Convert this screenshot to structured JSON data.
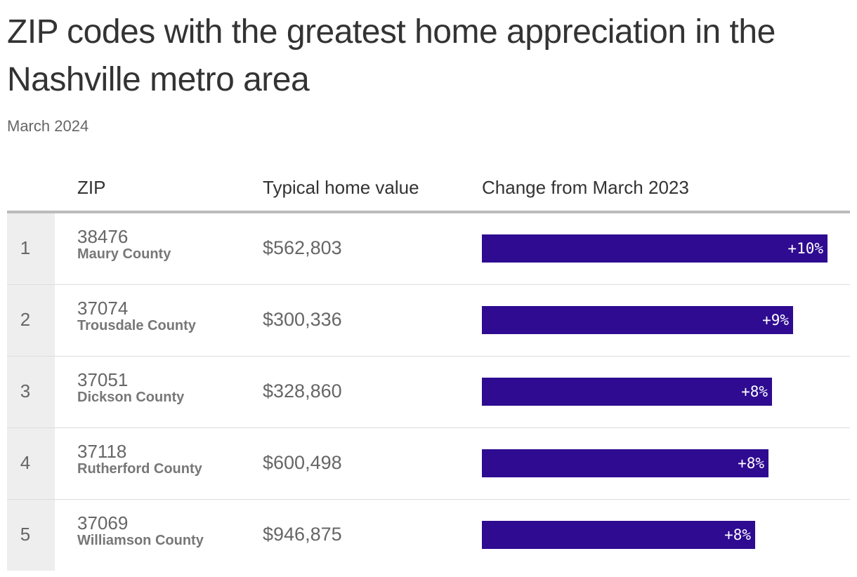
{
  "title": "ZIP codes with the greatest home appreciation in the Nashville metro area",
  "subtitle": "March 2024",
  "bar_color": "#2e0b91",
  "chart_data": {
    "type": "table",
    "title": "ZIP codes with the greatest home appreciation in the Nashville metro area",
    "subtitle": "March 2024",
    "columns": [
      "",
      "ZIP",
      "Typical home value",
      "Change from March 2023"
    ],
    "max_change": 10,
    "rows": [
      {
        "rank": "1",
        "zip": "38476",
        "county": "Maury County",
        "value": "$562,803",
        "change": 10,
        "change_label": "+10%"
      },
      {
        "rank": "2",
        "zip": "37074",
        "county": "Trousdale County",
        "value": "$300,336",
        "change": 9,
        "change_label": "+9%"
      },
      {
        "rank": "3",
        "zip": "37051",
        "county": "Dickson County",
        "value": "$328,860",
        "change": 8.4,
        "change_label": "+8%"
      },
      {
        "rank": "4",
        "zip": "37118",
        "county": "Rutherford County",
        "value": "$600,498",
        "change": 8.3,
        "change_label": "+8%"
      },
      {
        "rank": "5",
        "zip": "37069",
        "county": "Williamson County",
        "value": "$946,875",
        "change": 7.9,
        "change_label": "+8%"
      }
    ]
  }
}
